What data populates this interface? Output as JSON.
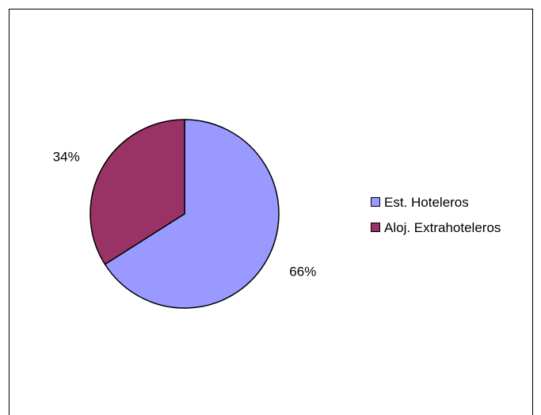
{
  "chart_data": {
    "type": "pie",
    "title": "",
    "legend_position": "right",
    "slices": [
      {
        "name": "Est. Hoteleros",
        "value": 66,
        "label": "66%",
        "color": "#9999ff"
      },
      {
        "name": "Aloj. Extrahoteleros",
        "value": 34,
        "label": "34%",
        "color": "#993366"
      }
    ]
  }
}
